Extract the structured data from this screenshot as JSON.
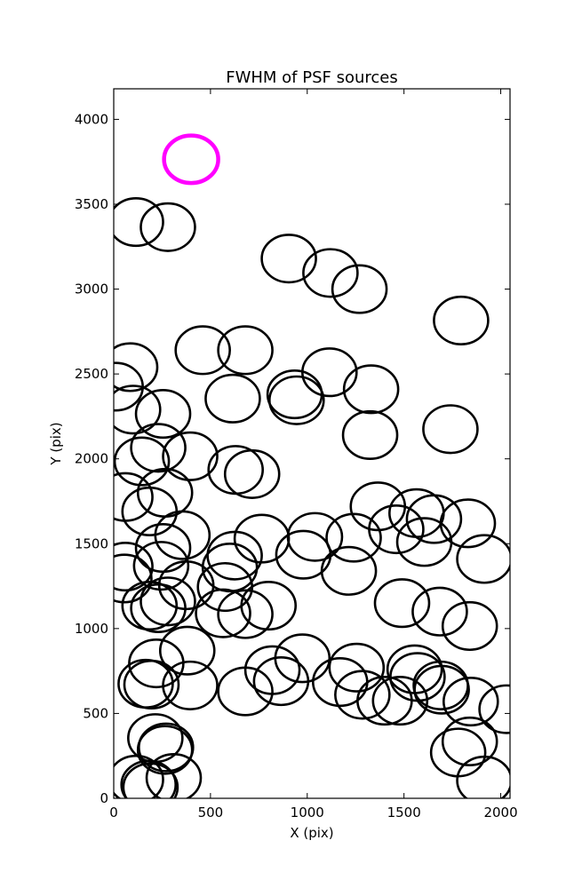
{
  "chart_data": {
    "type": "scatter",
    "title": "FWHM of PSF sources",
    "xlabel": "X (pix)",
    "ylabel": "Y (pix)",
    "xlim": [
      0,
      2048
    ],
    "ylim": [
      0,
      4180
    ],
    "xticks": [
      0,
      500,
      1000,
      1500,
      2000
    ],
    "yticks": [
      0,
      500,
      1000,
      1500,
      2000,
      2500,
      3000,
      3500,
      4000
    ],
    "grid": false,
    "marker": "open circle",
    "marker_radius": 140,
    "series": [
      {
        "color": "#000000",
        "points": [
          [
            115,
            3395
          ],
          [
            280,
            3365
          ],
          [
            905,
            3180
          ],
          [
            1120,
            3095
          ],
          [
            1270,
            3000
          ],
          [
            1795,
            2815
          ],
          [
            460,
            2640
          ],
          [
            680,
            2640
          ],
          [
            85,
            2540
          ],
          [
            10,
            2425
          ],
          [
            1115,
            2510
          ],
          [
            935,
            2380
          ],
          [
            945,
            2345
          ],
          [
            615,
            2355
          ],
          [
            1330,
            2410
          ],
          [
            100,
            2290
          ],
          [
            255,
            2265
          ],
          [
            1325,
            2140
          ],
          [
            1740,
            2175
          ],
          [
            230,
            2065
          ],
          [
            395,
            2015
          ],
          [
            145,
            1985
          ],
          [
            630,
            1935
          ],
          [
            715,
            1910
          ],
          [
            60,
            1775
          ],
          [
            265,
            1800
          ],
          [
            185,
            1690
          ],
          [
            1365,
            1720
          ],
          [
            1565,
            1680
          ],
          [
            1655,
            1645
          ],
          [
            1830,
            1620
          ],
          [
            1460,
            1585
          ],
          [
            355,
            1550
          ],
          [
            765,
            1530
          ],
          [
            1040,
            1540
          ],
          [
            1240,
            1535
          ],
          [
            1605,
            1510
          ],
          [
            1915,
            1410
          ],
          [
            255,
            1475
          ],
          [
            625,
            1430
          ],
          [
            980,
            1435
          ],
          [
            245,
            1370
          ],
          [
            600,
            1360
          ],
          [
            1215,
            1340
          ],
          [
            60,
            1365
          ],
          [
            55,
            1295
          ],
          [
            375,
            1255
          ],
          [
            575,
            1245
          ],
          [
            185,
            1135
          ],
          [
            280,
            1160
          ],
          [
            230,
            1120
          ],
          [
            565,
            1090
          ],
          [
            680,
            1085
          ],
          [
            800,
            1135
          ],
          [
            1490,
            1150
          ],
          [
            1685,
            1100
          ],
          [
            1840,
            1015
          ],
          [
            380,
            870
          ],
          [
            220,
            795
          ],
          [
            820,
            755
          ],
          [
            975,
            825
          ],
          [
            1255,
            770
          ],
          [
            1555,
            760
          ],
          [
            165,
            675
          ],
          [
            195,
            670
          ],
          [
            395,
            665
          ],
          [
            865,
            690
          ],
          [
            680,
            630
          ],
          [
            1170,
            685
          ],
          [
            1285,
            610
          ],
          [
            1400,
            575
          ],
          [
            1480,
            575
          ],
          [
            1570,
            715
          ],
          [
            1690,
            665
          ],
          [
            1695,
            640
          ],
          [
            1845,
            570
          ],
          [
            2030,
            525
          ],
          [
            215,
            355
          ],
          [
            270,
            300
          ],
          [
            265,
            285
          ],
          [
            1840,
            335
          ],
          [
            1780,
            270
          ],
          [
            115,
            110
          ],
          [
            180,
            80
          ],
          [
            190,
            65
          ],
          [
            310,
            120
          ],
          [
            1915,
            105
          ]
        ]
      },
      {
        "color": "#ff00ff",
        "points": [
          [
            400,
            3765
          ]
        ]
      }
    ]
  }
}
